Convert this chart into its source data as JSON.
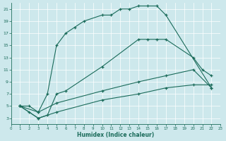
{
  "bg_color": "#cde8ec",
  "line_color": "#1a6b5a",
  "xlabel": "Humidex (Indice chaleur)",
  "xlim": [
    0,
    23
  ],
  "ylim": [
    2,
    22
  ],
  "xticks": [
    0,
    1,
    2,
    3,
    4,
    5,
    6,
    7,
    8,
    9,
    10,
    11,
    12,
    13,
    14,
    15,
    16,
    17,
    18,
    19,
    20,
    21,
    22,
    23
  ],
  "yticks": [
    3,
    5,
    7,
    9,
    11,
    13,
    15,
    17,
    19,
    21
  ],
  "curve1_x": [
    1,
    2,
    3,
    4,
    5,
    6,
    7,
    8,
    10,
    11,
    12,
    13,
    14,
    15,
    16,
    17,
    22
  ],
  "curve1_y": [
    5,
    5,
    4,
    7,
    15,
    17,
    18,
    19,
    20,
    20,
    21,
    21,
    21.5,
    21.5,
    21.5,
    20,
    8
  ],
  "curve2_x": [
    1,
    2,
    3,
    4,
    5,
    6,
    10,
    14,
    15,
    16,
    17,
    20,
    21,
    22
  ],
  "curve2_y": [
    5,
    4,
    3,
    3.5,
    7,
    7.5,
    11.5,
    16,
    16,
    16,
    16,
    13,
    11,
    10
  ],
  "curve3_x": [
    1,
    3,
    5,
    10,
    14,
    17,
    20,
    22
  ],
  "curve3_y": [
    5,
    4,
    5.5,
    7.5,
    9,
    10,
    11,
    8
  ],
  "curve4_x": [
    1,
    3,
    5,
    10,
    14,
    17,
    20,
    22
  ],
  "curve4_y": [
    5,
    3,
    4,
    6,
    7,
    8,
    8.5,
    8.5
  ]
}
